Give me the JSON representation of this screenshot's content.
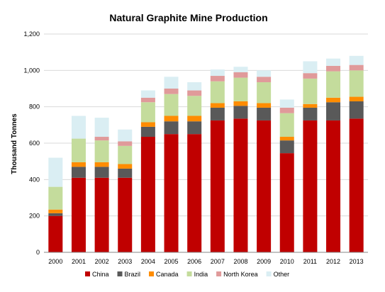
{
  "chart_data": {
    "type": "bar",
    "stacked": true,
    "title": "Natural Graphite Mine Production",
    "ylabel": "Thousand Tonnes",
    "xlabel": "",
    "ylim": [
      0,
      1200
    ],
    "yticks": [
      "0",
      "200",
      "400",
      "600",
      "800",
      "1,000",
      "1,200"
    ],
    "ytick_values": [
      0,
      200,
      400,
      600,
      800,
      1000,
      1200
    ],
    "grid": true,
    "legend_position": "bottom",
    "categories": [
      "2000",
      "2001",
      "2002",
      "2003",
      "2004",
      "2005",
      "2006",
      "2007",
      "2008",
      "2009",
      "2010",
      "2011",
      "2012",
      "2013"
    ],
    "series": [
      {
        "name": "China",
        "color": "#c00000",
        "values": [
          200,
          410,
          410,
          410,
          635,
          650,
          650,
          725,
          735,
          725,
          545,
          725,
          725,
          735
        ]
      },
      {
        "name": "Brazil",
        "color": "#595959",
        "values": [
          15,
          60,
          60,
          50,
          55,
          70,
          70,
          70,
          70,
          70,
          70,
          70,
          100,
          95
        ]
      },
      {
        "name": "Canada",
        "color": "#ff8c00",
        "values": [
          20,
          25,
          25,
          25,
          25,
          30,
          30,
          25,
          25,
          25,
          20,
          20,
          25,
          25
        ]
      },
      {
        "name": "India",
        "color": "#c4dc9c",
        "values": [
          125,
          130,
          120,
          100,
          110,
          120,
          110,
          120,
          130,
          115,
          130,
          140,
          145,
          145
        ]
      },
      {
        "name": "North Korea",
        "color": "#e09a9a",
        "values": [
          0,
          0,
          20,
          25,
          25,
          30,
          30,
          30,
          30,
          30,
          30,
          30,
          30,
          30
        ]
      },
      {
        "name": "Other",
        "color": "#daeef3",
        "values": [
          160,
          125,
          105,
          65,
          40,
          65,
          45,
          35,
          30,
          35,
          45,
          65,
          40,
          50
        ]
      }
    ]
  }
}
